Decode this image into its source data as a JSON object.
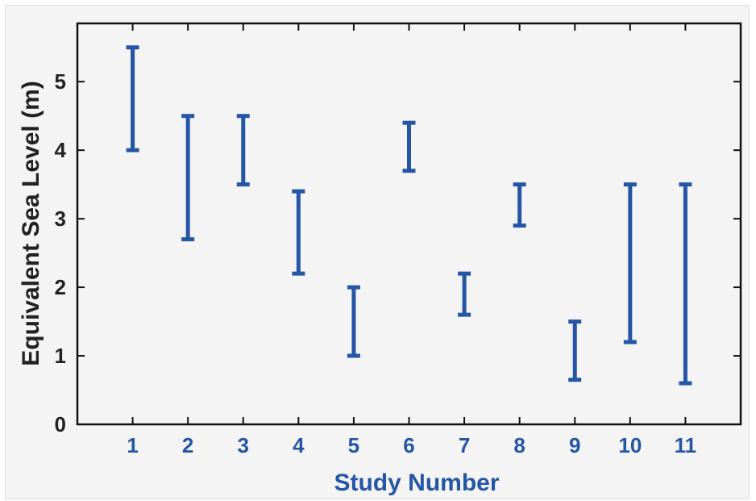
{
  "chart_data": {
    "type": "errorbar",
    "xlabel": "Study Number",
    "ylabel": "Equivalent Sea Level (m)",
    "categories": [
      "1",
      "2",
      "3",
      "4",
      "5",
      "6",
      "7",
      "8",
      "9",
      "10",
      "11"
    ],
    "yticks": [
      "0",
      "1",
      "2",
      "3",
      "4",
      "5"
    ],
    "ylim": [
      0,
      5.85
    ],
    "xlim": [
      0,
      12
    ],
    "grid": false,
    "ranges": [
      {
        "study": 1,
        "low": 4.0,
        "high": 5.5
      },
      {
        "study": 2,
        "low": 2.7,
        "high": 4.5
      },
      {
        "study": 3,
        "low": 3.5,
        "high": 4.5
      },
      {
        "study": 4,
        "low": 2.2,
        "high": 3.4
      },
      {
        "study": 5,
        "low": 1.0,
        "high": 2.0
      },
      {
        "study": 6,
        "low": 3.7,
        "high": 4.4
      },
      {
        "study": 7,
        "low": 1.6,
        "high": 2.2
      },
      {
        "study": 8,
        "low": 2.9,
        "high": 3.5
      },
      {
        "study": 9,
        "low": 0.65,
        "high": 1.5
      },
      {
        "study": 10,
        "low": 1.2,
        "high": 3.5
      },
      {
        "study": 11,
        "low": 0.6,
        "high": 3.5
      }
    ],
    "colors": {
      "bars": "#2556a6",
      "xtext": "#2556a6",
      "ytext": "#222222",
      "axes": "#111111"
    }
  }
}
